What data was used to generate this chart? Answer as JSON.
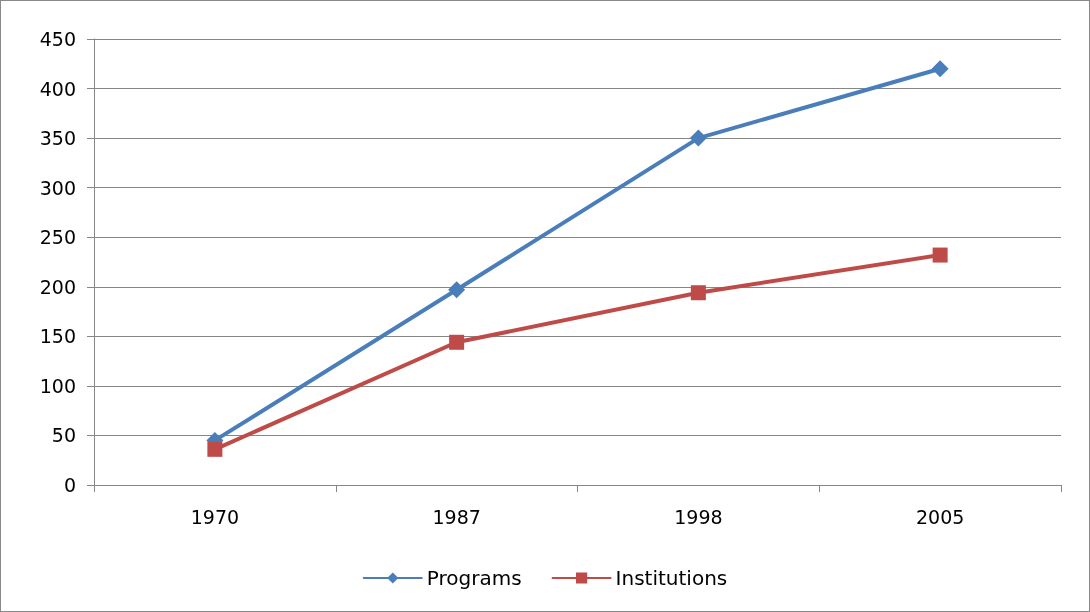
{
  "chart_data": {
    "type": "line",
    "categories": [
      "1970",
      "1987",
      "1998",
      "2005"
    ],
    "series": [
      {
        "name": "Programs",
        "color": "#4a7ebb",
        "marker": "diamond",
        "values": [
          45,
          197,
          350,
          420
        ]
      },
      {
        "name": "Institutions",
        "color": "#be4b48",
        "marker": "square",
        "values": [
          36,
          144,
          194,
          232
        ]
      }
    ],
    "ylim": [
      0,
      450
    ],
    "yticks": [
      0,
      50,
      100,
      150,
      200,
      250,
      300,
      350,
      400,
      450
    ],
    "grid": "y",
    "legend": "bottom",
    "line_style": "solid"
  }
}
